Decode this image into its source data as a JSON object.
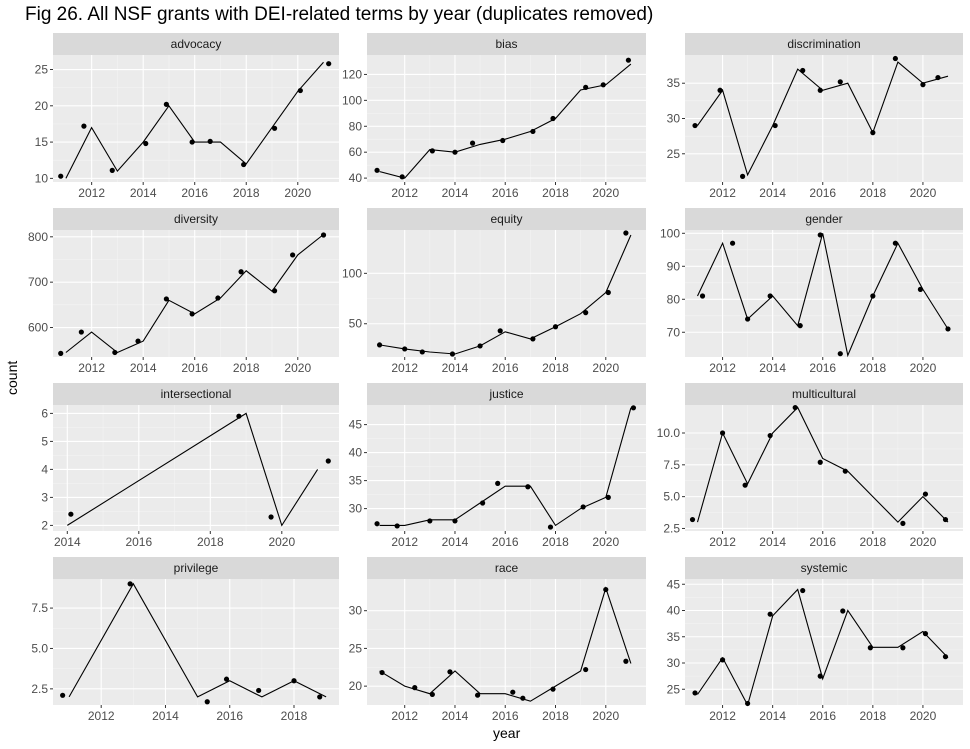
{
  "figure": {
    "title": "Fig 26. All NSF grants with DEI-related terms by year (duplicates removed)",
    "ylabel": "count",
    "xlabel": "year"
  },
  "colors": {
    "panel_bg": "#ebebeb",
    "strip_bg": "#d9d9d9",
    "grid_major": "#ffffff",
    "grid_minor": "#f4f4f4",
    "line": "#000000",
    "point": "#000000",
    "tick_text": "#4d4d4d"
  },
  "chart_data": [
    {
      "type": "line",
      "title": "advocacy",
      "xlim": [
        2010.5,
        2021.6
      ],
      "ylim": [
        9.5,
        27
      ],
      "xticks": [
        2012,
        2014,
        2016,
        2018,
        2020
      ],
      "yticks": [
        10,
        15,
        20,
        25
      ],
      "line": {
        "x": [
          2011,
          2012,
          2013,
          2014,
          2015,
          2016,
          2017,
          2018,
          2019,
          2020,
          2021
        ],
        "y": [
          10,
          17,
          11,
          15,
          20,
          15,
          15,
          12,
          17,
          22,
          26
        ]
      },
      "points": {
        "x": [
          2010.8,
          2011.7,
          2012.8,
          2014.1,
          2014.9,
          2015.9,
          2016.6,
          2017.9,
          2019.1,
          2020.1,
          2021.2
        ],
        "y": [
          10.3,
          17.2,
          11.1,
          14.8,
          20.2,
          15,
          15.1,
          11.9,
          16.9,
          22.1,
          25.8
        ]
      }
    },
    {
      "type": "line",
      "title": "bias",
      "xlim": [
        2010.5,
        2021.6
      ],
      "ylim": [
        37,
        135
      ],
      "xticks": [
        2012,
        2014,
        2016,
        2018,
        2020
      ],
      "yticks": [
        40,
        60,
        80,
        100,
        120
      ],
      "line": {
        "x": [
          2011,
          2012,
          2013,
          2014,
          2015,
          2016,
          2017,
          2018,
          2019,
          2020,
          2021
        ],
        "y": [
          45,
          40,
          62,
          60,
          66,
          70,
          76,
          86,
          108,
          112,
          128
        ]
      },
      "points": {
        "x": [
          2010.9,
          2011.9,
          2013.1,
          2014.0,
          2014.7,
          2015.9,
          2017.1,
          2017.9,
          2019.2,
          2019.9,
          2020.9
        ],
        "y": [
          46,
          41,
          61,
          60,
          67,
          69,
          76,
          86,
          110,
          112,
          131
        ]
      }
    },
    {
      "type": "line",
      "title": "discrimination",
      "xlim": [
        2010.5,
        2021.6
      ],
      "ylim": [
        21,
        39
      ],
      "xticks": [
        2012,
        2014,
        2016,
        2018,
        2020
      ],
      "yticks": [
        25,
        30,
        35
      ],
      "line": {
        "x": [
          2011,
          2012,
          2013,
          2014,
          2015,
          2016,
          2017,
          2018,
          2019,
          2020,
          2021
        ],
        "y": [
          29,
          34,
          22,
          29,
          37,
          34,
          35,
          28,
          38,
          35,
          36
        ]
      },
      "points": {
        "x": [
          2010.9,
          2011.9,
          2012.8,
          2014.1,
          2015.2,
          2015.9,
          2016.7,
          2018.0,
          2018.9,
          2020.0,
          2020.6
        ],
        "y": [
          29,
          34,
          21.8,
          29,
          36.8,
          34,
          35.2,
          28,
          38.5,
          34.8,
          35.8
        ]
      }
    },
    {
      "type": "line",
      "title": "diversity",
      "xlim": [
        2010.5,
        2021.6
      ],
      "ylim": [
        535,
        815
      ],
      "xticks": [
        2012,
        2014,
        2016,
        2018,
        2020
      ],
      "yticks": [
        600,
        700,
        800
      ],
      "line": {
        "x": [
          2011,
          2012,
          2013,
          2014,
          2015,
          2016,
          2017,
          2018,
          2019,
          2020,
          2021
        ],
        "y": [
          545,
          590,
          545,
          570,
          660,
          630,
          665,
          725,
          680,
          760,
          805
        ]
      },
      "points": {
        "x": [
          2010.8,
          2011.6,
          2012.9,
          2013.8,
          2014.9,
          2015.9,
          2016.9,
          2017.8,
          2019.1,
          2019.8,
          2021.0
        ],
        "y": [
          543,
          590,
          545,
          570,
          663,
          630,
          665,
          723,
          681,
          760,
          804
        ]
      }
    },
    {
      "type": "line",
      "title": "equity",
      "xlim": [
        2010.5,
        2021.6
      ],
      "ylim": [
        17,
        143
      ],
      "xticks": [
        2012,
        2014,
        2016,
        2018,
        2020
      ],
      "yticks": [
        50,
        100
      ],
      "line": {
        "x": [
          2011,
          2012,
          2013,
          2014,
          2015,
          2016,
          2017,
          2018,
          2019,
          2020,
          2021
        ],
        "y": [
          29,
          25,
          22,
          20,
          28,
          42,
          35,
          47,
          60,
          81,
          138
        ]
      },
      "points": {
        "x": [
          2011.0,
          2012.0,
          2012.7,
          2013.9,
          2015.0,
          2015.8,
          2017.1,
          2018.0,
          2019.2,
          2020.1,
          2020.8
        ],
        "y": [
          29,
          25,
          22,
          20,
          28,
          43,
          35,
          47,
          61,
          81,
          140
        ]
      }
    },
    {
      "type": "line",
      "title": "gender",
      "xlim": [
        2010.5,
        2021.6
      ],
      "ylim": [
        62.5,
        101
      ],
      "xticks": [
        2012,
        2014,
        2016,
        2018,
        2020
      ],
      "yticks": [
        70,
        80,
        90,
        100
      ],
      "line": {
        "x": [
          2011,
          2012,
          2013,
          2014,
          2015,
          2016,
          2017,
          2018,
          2019,
          2020,
          2021
        ],
        "y": [
          81,
          97,
          74,
          81,
          72,
          100,
          63,
          81,
          97,
          83,
          71
        ]
      },
      "points": {
        "x": [
          2011.2,
          2012.4,
          2013.0,
          2013.9,
          2015.1,
          2015.9,
          2016.7,
          2018.0,
          2018.9,
          2019.9,
          2021.0
        ],
        "y": [
          81,
          97,
          74,
          81,
          72,
          99.5,
          63.5,
          81,
          97,
          83,
          71
        ]
      }
    },
    {
      "type": "line",
      "title": "intersectional",
      "xlim": [
        2013.6,
        2021.6
      ],
      "ylim": [
        1.8,
        6.3
      ],
      "xticks": [
        2014,
        2016,
        2018,
        2020
      ],
      "yticks": [
        2,
        3,
        4,
        5,
        6
      ],
      "line": {
        "x": [
          2014,
          2019,
          2020,
          2021
        ],
        "y": [
          2,
          6,
          2,
          4
        ]
      },
      "points": {
        "x": [
          2014.1,
          2018.8,
          2019.7,
          2021.3
        ],
        "y": [
          2.4,
          5.9,
          2.3,
          4.3
        ]
      }
    },
    {
      "type": "line",
      "title": "justice",
      "xlim": [
        2010.5,
        2021.6
      ],
      "ylim": [
        26,
        48.5
      ],
      "xticks": [
        2012,
        2014,
        2016,
        2018,
        2020
      ],
      "yticks": [
        30,
        35,
        40,
        45
      ],
      "line": {
        "x": [
          2011,
          2012,
          2013,
          2014,
          2015,
          2016,
          2017,
          2018,
          2019,
          2020,
          2021
        ],
        "y": [
          27,
          27,
          28,
          28,
          31,
          34,
          34,
          27,
          30,
          32,
          48
        ]
      },
      "points": {
        "x": [
          2010.9,
          2011.7,
          2013.0,
          2014.0,
          2015.1,
          2015.7,
          2016.9,
          2017.8,
          2019.1,
          2020.1,
          2021.1
        ],
        "y": [
          27.3,
          26.9,
          27.8,
          27.8,
          31,
          34.5,
          33.9,
          26.7,
          30.3,
          32,
          48
        ]
      }
    },
    {
      "type": "line",
      "title": "multicultural",
      "xlim": [
        2010.5,
        2021.6
      ],
      "ylim": [
        2.3,
        12.2
      ],
      "xticks": [
        2012,
        2014,
        2016,
        2018,
        2020
      ],
      "yticks": [
        2.5,
        5.0,
        7.5,
        10.0
      ],
      "line": {
        "x": [
          2011,
          2012,
          2013,
          2014,
          2015,
          2016,
          2017,
          2018,
          2019,
          2020,
          2021
        ],
        "y": [
          3,
          10,
          6,
          10,
          12,
          8,
          7,
          5,
          3,
          5,
          3
        ]
      },
      "points": {
        "x": [
          2010.8,
          2012.0,
          2012.9,
          2013.9,
          2014.9,
          2015.9,
          2016.9,
          2019.2,
          2020.1,
          2020.9
        ],
        "y": [
          3.2,
          10,
          5.9,
          9.8,
          12,
          7.7,
          7.0,
          2.9,
          5.2,
          3.2
        ]
      }
    },
    {
      "type": "line",
      "title": "privilege",
      "xlim": [
        2010.5,
        2019.4
      ],
      "ylim": [
        1.5,
        9.3
      ],
      "xticks": [
        2012,
        2014,
        2016,
        2018
      ],
      "yticks": [
        2.5,
        5.0,
        7.5
      ],
      "line": {
        "x": [
          2011,
          2013,
          2015,
          2016,
          2017,
          2018,
          2019
        ],
        "y": [
          2,
          9,
          2,
          3,
          2,
          3,
          2
        ]
      },
      "points": {
        "x": [
          2010.8,
          2012.9,
          2015.3,
          2015.9,
          2016.9,
          2018.0,
          2018.8
        ],
        "y": [
          2.1,
          9.0,
          1.7,
          3.1,
          2.4,
          3.0,
          2.0
        ]
      }
    },
    {
      "type": "line",
      "title": "race",
      "xlim": [
        2010.5,
        2021.6
      ],
      "ylim": [
        17.5,
        34.2
      ],
      "xticks": [
        2012,
        2014,
        2016,
        2018,
        2020
      ],
      "yticks": [
        20,
        25,
        30
      ],
      "line": {
        "x": [
          2011,
          2012,
          2013,
          2014,
          2015,
          2016,
          2017,
          2018,
          2019,
          2020,
          2021
        ],
        "y": [
          22,
          20,
          19,
          22,
          19,
          19,
          18,
          20,
          22,
          33,
          23
        ]
      },
      "points": {
        "x": [
          2011.1,
          2012.4,
          2013.1,
          2013.8,
          2014.9,
          2016.3,
          2016.7,
          2017.9,
          2019.2,
          2020.0,
          2020.8
        ],
        "y": [
          21.8,
          19.8,
          18.9,
          21.9,
          18.8,
          19.2,
          18.4,
          19.6,
          22.2,
          32.8,
          23.3
        ]
      }
    },
    {
      "type": "line",
      "title": "systemic",
      "xlim": [
        2010.5,
        2021.6
      ],
      "ylim": [
        22,
        46
      ],
      "xticks": [
        2012,
        2014,
        2016,
        2018,
        2020
      ],
      "yticks": [
        25,
        30,
        35,
        40,
        45
      ],
      "line": {
        "x": [
          2011,
          2012,
          2013,
          2014,
          2015,
          2016,
          2017,
          2018,
          2019,
          2020,
          2021
        ],
        "y": [
          24,
          31,
          22,
          39,
          44,
          27,
          40,
          33,
          33,
          36,
          31
        ]
      },
      "points": {
        "x": [
          2010.9,
          2012.0,
          2013.0,
          2013.9,
          2015.2,
          2015.9,
          2016.8,
          2017.9,
          2019.2,
          2020.1,
          2020.9
        ],
        "y": [
          24.3,
          30.6,
          22.3,
          39.3,
          43.8,
          27.5,
          39.9,
          32.9,
          32.9,
          35.6,
          31.2
        ]
      }
    }
  ]
}
